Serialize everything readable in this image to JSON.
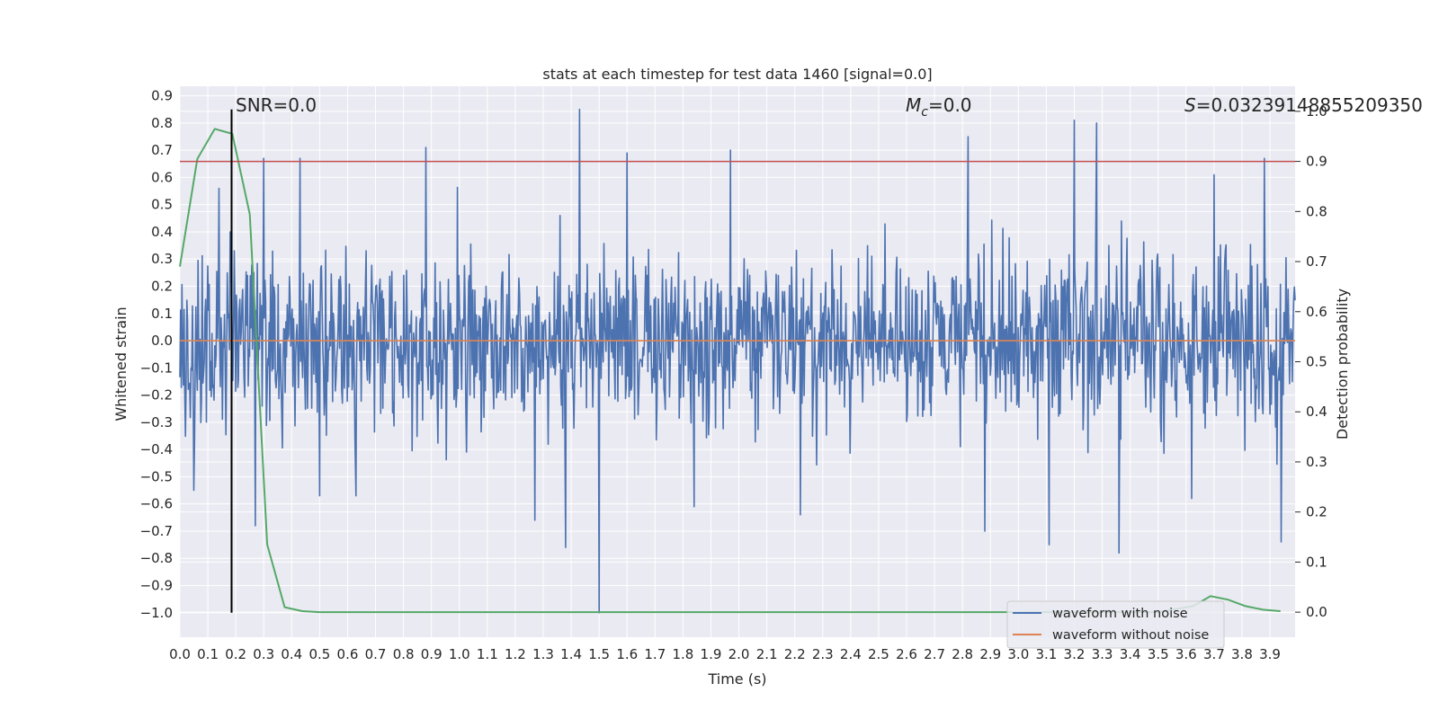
{
  "chart_data": {
    "type": "line",
    "title": "stats at each timestep for test data 1460 [signal=0.0]",
    "xlabel": "Time (s)",
    "ylabel_left": "Whitened strain",
    "ylabel_right": "Detection probability",
    "xlim": [
      0.0,
      3.99
    ],
    "ylim_left": [
      -1.09,
      0.935
    ],
    "ylim_right": [
      -0.05,
      1.05
    ],
    "x_ticks": [
      "0.0",
      "0.1",
      "0.2",
      "0.3",
      "0.4",
      "0.5",
      "0.6",
      "0.7",
      "0.8",
      "0.9",
      "1.0",
      "1.1",
      "1.2",
      "1.3",
      "1.4",
      "1.5",
      "1.6",
      "1.7",
      "1.8",
      "1.9",
      "2.0",
      "2.1",
      "2.2",
      "2.3",
      "2.4",
      "2.5",
      "2.6",
      "2.7",
      "2.8",
      "2.9",
      "3.0",
      "3.1",
      "3.2",
      "3.3",
      "3.4",
      "3.5",
      "3.6",
      "3.7",
      "3.8",
      "3.9"
    ],
    "y_ticks_left": [
      "0.9",
      "0.8",
      "0.7",
      "0.6",
      "0.5",
      "0.4",
      "0.3",
      "0.2",
      "0.1",
      "0.0",
      "−0.1",
      "−0.2",
      "−0.3",
      "−0.4",
      "−0.5",
      "−0.6",
      "−0.7",
      "−0.8",
      "−0.9",
      "−1.0"
    ],
    "y_ticks_right": [
      "1.0",
      "0.9",
      "0.8",
      "0.7",
      "0.6",
      "0.5",
      "0.4",
      "0.3",
      "0.2",
      "0.1",
      "0.0"
    ],
    "threshold_line": {
      "axis": "right",
      "value": 0.9,
      "color": "#c44e52"
    },
    "marker_line": {
      "x": 0.185,
      "y_from": -1.0,
      "y_to": 0.85,
      "color": "#000000"
    },
    "annotations": {
      "snr": "SNR=0.0",
      "mc_symbol": "M",
      "mc_sub": "c",
      "mc_value": "=0.0",
      "s_symbol": "S",
      "s_value": "=0.03239148855209350"
    },
    "series": [
      {
        "name": "waveform with noise",
        "axis": "left",
        "color": "#4c72b0",
        "style": "dense noise",
        "amplitude_range": [
          -1.0,
          0.85
        ],
        "spikes": [
          [
            0.05,
            -0.55
          ],
          [
            0.14,
            0.56
          ],
          [
            0.18,
            0.4
          ],
          [
            0.27,
            -0.68
          ],
          [
            0.3,
            0.67
          ],
          [
            0.43,
            0.67
          ],
          [
            0.5,
            -0.57
          ],
          [
            0.63,
            -0.57
          ],
          [
            0.88,
            0.71
          ],
          [
            1.27,
            -0.66
          ],
          [
            1.36,
            0.46
          ],
          [
            1.38,
            -0.76
          ],
          [
            1.43,
            0.85
          ],
          [
            1.5,
            -1.0
          ],
          [
            1.6,
            0.69
          ],
          [
            1.84,
            -0.61
          ],
          [
            1.97,
            0.7
          ],
          [
            2.22,
            -0.64
          ],
          [
            2.82,
            0.75
          ],
          [
            2.88,
            -0.7
          ],
          [
            3.11,
            -0.75
          ],
          [
            3.2,
            0.81
          ],
          [
            3.28,
            0.8
          ],
          [
            3.36,
            -0.78
          ],
          [
            3.62,
            -0.58
          ],
          [
            3.7,
            0.61
          ],
          [
            3.88,
            0.67
          ],
          [
            3.94,
            -0.74
          ]
        ]
      },
      {
        "name": "waveform without noise",
        "axis": "left",
        "color": "#dd8452",
        "x": [
          0.0,
          3.99
        ],
        "y": [
          0.0,
          0.0
        ]
      },
      {
        "name": "detection probability",
        "axis": "right",
        "color": "#55a868",
        "x": [
          0.0,
          0.0625,
          0.125,
          0.1875,
          0.25,
          0.3125,
          0.375,
          0.4375,
          0.5,
          1.0,
          1.5,
          2.0,
          2.5,
          3.0,
          3.5,
          3.625,
          3.6875,
          3.75,
          3.8125,
          3.875,
          3.9375
        ],
        "y": [
          0.69,
          0.905,
          0.965,
          0.955,
          0.795,
          0.135,
          0.01,
          0.002,
          0.0,
          0.0,
          0.0,
          0.0,
          0.0,
          0.0,
          0.0,
          0.012,
          0.032,
          0.025,
          0.012,
          0.005,
          0.002
        ]
      }
    ],
    "legend": {
      "position": "bottom-right",
      "entries": [
        {
          "label": "waveform with noise",
          "color": "#4c72b0"
        },
        {
          "label": "waveform without noise",
          "color": "#dd8452"
        }
      ]
    }
  }
}
